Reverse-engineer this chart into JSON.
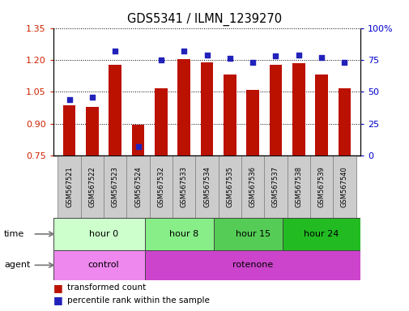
{
  "title": "GDS5341 / ILMN_1239270",
  "samples": [
    "GSM567521",
    "GSM567522",
    "GSM567523",
    "GSM567524",
    "GSM567532",
    "GSM567533",
    "GSM567534",
    "GSM567535",
    "GSM567536",
    "GSM567537",
    "GSM567538",
    "GSM567539",
    "GSM567540"
  ],
  "bar_values": [
    0.985,
    0.98,
    1.175,
    0.895,
    1.065,
    1.205,
    1.19,
    1.13,
    1.06,
    1.175,
    1.185,
    1.13,
    1.065
  ],
  "dot_values": [
    44,
    46,
    82,
    7,
    75,
    82,
    79,
    76,
    73,
    78,
    79,
    77,
    73
  ],
  "ylim_left": [
    0.75,
    1.35
  ],
  "ylim_right": [
    0,
    100
  ],
  "yticks_left": [
    0.75,
    0.9,
    1.05,
    1.2,
    1.35
  ],
  "yticks_right": [
    0,
    25,
    50,
    75,
    100
  ],
  "ytick_labels_right": [
    "0",
    "25",
    "50",
    "75",
    "100%"
  ],
  "bar_color": "#bb1100",
  "dot_color": "#2222bb",
  "grid_color": "#000000",
  "time_groups": [
    {
      "label": "hour 0",
      "start": 0,
      "end": 4,
      "color": "#ccffcc"
    },
    {
      "label": "hour 8",
      "start": 4,
      "end": 7,
      "color": "#88ee88"
    },
    {
      "label": "hour 15",
      "start": 7,
      "end": 10,
      "color": "#55cc55"
    },
    {
      "label": "hour 24",
      "start": 10,
      "end": 13,
      "color": "#22bb22"
    }
  ],
  "agent_groups": [
    {
      "label": "control",
      "start": 0,
      "end": 4,
      "color": "#ee88ee"
    },
    {
      "label": "rotenone",
      "start": 4,
      "end": 13,
      "color": "#cc44cc"
    }
  ],
  "legend_bar_label": "transformed count",
  "legend_dot_label": "percentile rank within the sample",
  "time_label": "time",
  "agent_label": "agent",
  "bg_color": "#ffffff",
  "tick_label_color_left": "#cc2200",
  "tick_label_color_right": "#0000cc",
  "sample_box_color": "#cccccc",
  "sample_box_edge": "#888888"
}
